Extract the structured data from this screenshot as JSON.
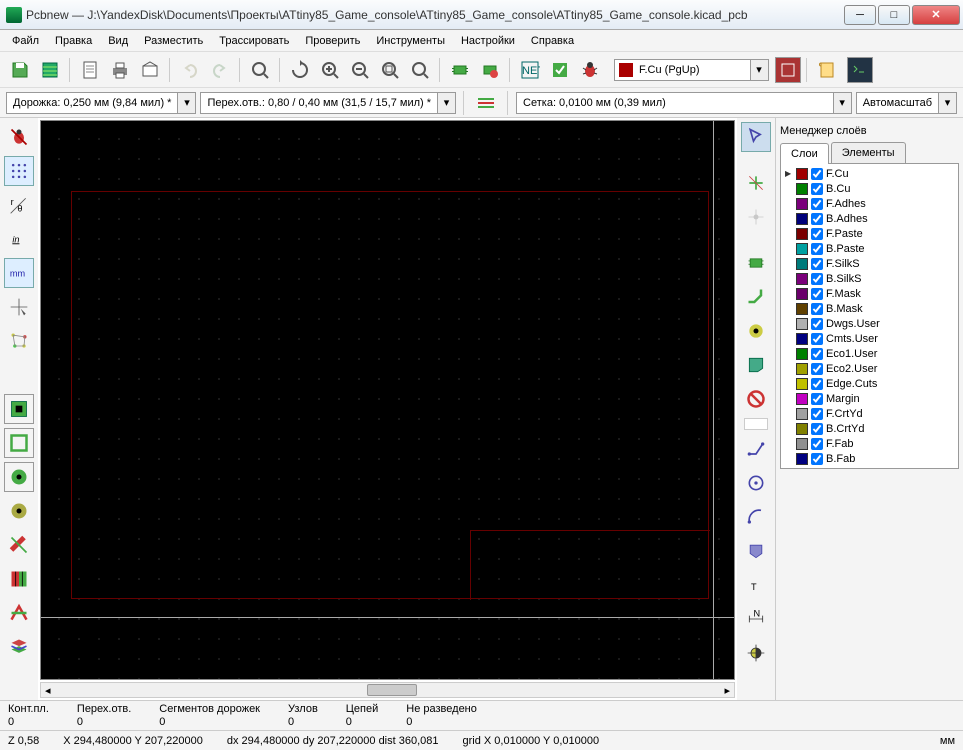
{
  "window": {
    "title": "Pcbnew — J:\\YandexDisk\\Documents\\Проекты\\ATtiny85_Game_console\\ATtiny85_Game_console\\ATtiny85_Game_console.kicad_pcb"
  },
  "menu": {
    "file": "Файл",
    "edit": "Правка",
    "view": "Вид",
    "place": "Разместить",
    "route": "Трассировать",
    "inspect": "Проверить",
    "tools": "Инструменты",
    "prefs": "Настройки",
    "help": "Справка"
  },
  "tb2": {
    "track": "Дорожка: 0,250 мм (9,84 мил) *",
    "via": "Перех.отв.: 0,80 / 0,40 мм (31,5 / 15,7 мил) *",
    "grid": "Сетка: 0,0100 мм (0,39 мил)",
    "zoom": "Автомасштаб"
  },
  "layersel": {
    "label": "F.Cu (PgUp)"
  },
  "mgr": {
    "title": "Менеджер слоёв",
    "tab1": "Слои",
    "tab2": "Элементы"
  },
  "layers": [
    {
      "name": "F.Cu",
      "color": "#a00000"
    },
    {
      "name": "B.Cu",
      "color": "#008000"
    },
    {
      "name": "F.Adhes",
      "color": "#7a007a"
    },
    {
      "name": "B.Adhes",
      "color": "#00007a"
    },
    {
      "name": "F.Paste",
      "color": "#7a0000"
    },
    {
      "name": "B.Paste",
      "color": "#00a0a0"
    },
    {
      "name": "F.SilkS",
      "color": "#007a7a"
    },
    {
      "name": "B.SilkS",
      "color": "#7a007a"
    },
    {
      "name": "F.Mask",
      "color": "#6a006a"
    },
    {
      "name": "B.Mask",
      "color": "#604000"
    },
    {
      "name": "Dwgs.User",
      "color": "#b0b0b0"
    },
    {
      "name": "Cmts.User",
      "color": "#000080"
    },
    {
      "name": "Eco1.User",
      "color": "#008000"
    },
    {
      "name": "Eco2.User",
      "color": "#a0a000"
    },
    {
      "name": "Edge.Cuts",
      "color": "#c0c000"
    },
    {
      "name": "Margin",
      "color": "#c000c0"
    },
    {
      "name": "F.CrtYd",
      "color": "#a0a0a0"
    },
    {
      "name": "B.CrtYd",
      "color": "#808000"
    },
    {
      "name": "F.Fab",
      "color": "#909090"
    },
    {
      "name": "B.Fab",
      "color": "#000080"
    }
  ],
  "st1": {
    "pads_l": "Конт.пл.",
    "pads_v": "0",
    "vias_l": "Перех.отв.",
    "vias_v": "0",
    "seg_l": "Сегментов дорожек",
    "seg_v": "0",
    "nodes_l": "Узлов",
    "nodes_v": "0",
    "nets_l": "Цепей",
    "nets_v": "0",
    "unr_l": "Не разведено",
    "unr_v": "0"
  },
  "st2": {
    "z": "Z 0,58",
    "xy": "X 294,480000  Y 207,220000",
    "dxy": "dx 294,480000  dy 207,220000  dist 360,081",
    "grid": "grid X 0,010000  Y 0,010000",
    "unit": "мм"
  }
}
